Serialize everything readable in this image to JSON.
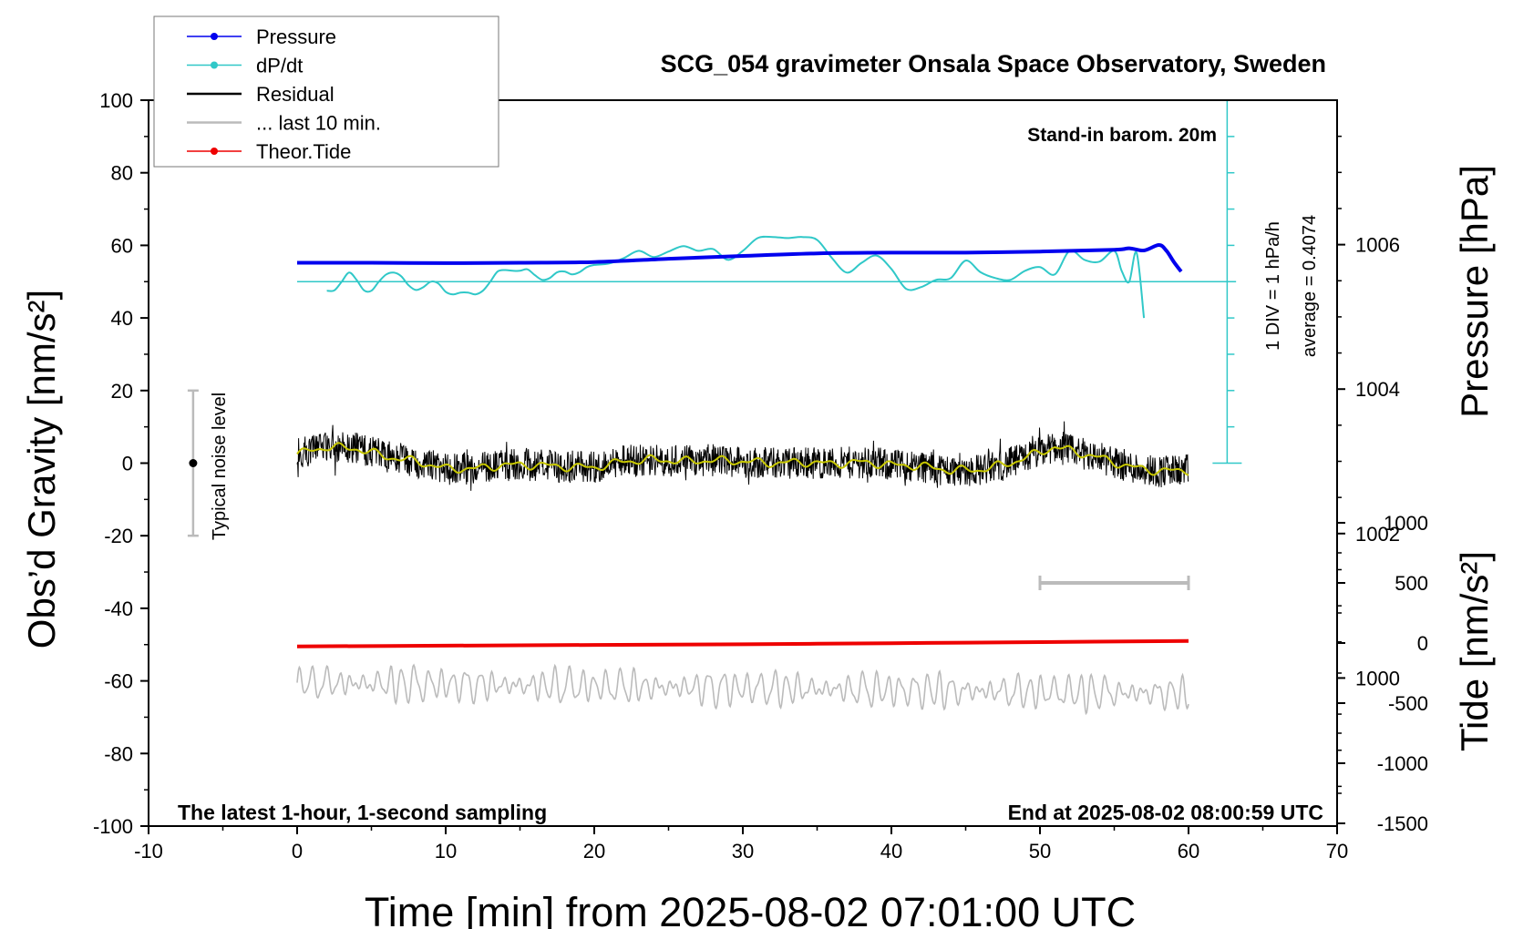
{
  "chart_data": {
    "type": "line",
    "title": "SCG_054 gravimeter Onsala Space Observatory, Sweden",
    "xlabel": "Time [min] from 2025-08-02 07:01:00 UTC",
    "ylabel_left": "Obs’d Gravity [nm/s²]",
    "ylabel_right_pressure": "Pressure [hPa]",
    "ylabel_right_tide": "Tide [nm/s²]",
    "xlim": [
      -10,
      70
    ],
    "ylim": [
      -100,
      100
    ],
    "x_ticks": [
      "-10",
      "0",
      "10",
      "20",
      "30",
      "40",
      "50",
      "60",
      "70"
    ],
    "y_ticks": [
      "100",
      "80",
      "60",
      "40",
      "20",
      "0",
      "-20",
      "-40",
      "-60",
      "-80",
      "-100"
    ],
    "pressure_axis": {
      "ticks": [
        "1006",
        "1004",
        "1002",
        "1000"
      ],
      "range": [
        997.95,
        1008
      ]
    },
    "tide_axis": {
      "ticks": [
        "1000",
        "500",
        "0",
        "-500",
        "-1000",
        "-1500"
      ],
      "range": [
        -1500,
        1500
      ]
    },
    "legend": {
      "placement": "top-left",
      "entries": [
        {
          "label": "Pressure",
          "color": "#0000ee",
          "marker": true
        },
        {
          "label": "dP/dt",
          "color": "#30c8c8",
          "marker": true
        },
        {
          "label": "Residual",
          "color": "#000000",
          "marker": false
        },
        {
          "label": "... last 10 min.",
          "color": "#bbbbbb",
          "marker": false
        },
        {
          "label": "Theor.Tide",
          "color": "#ee0000",
          "marker": true
        }
      ]
    },
    "annotations": {
      "barometer": "Stand-in barom. 20m",
      "div_note": "1 DIV = 1 hPa/h",
      "average_note": "average = 0.4074",
      "noise_label": "Typical noise level",
      "latest_note": "The latest 1-hour, 1-second sampling",
      "end_note": "End at 2025-08-02 08:00:59 UTC"
    },
    "noise_bar": {
      "x": -7,
      "ymin": -20,
      "ymax": 20,
      "center": 0
    },
    "last10_bar": {
      "xmin": 50,
      "xmax": 60,
      "y": -33
    },
    "series": [
      {
        "name": "Pressure",
        "color": "#0000ee",
        "x": [
          0,
          5,
          10,
          15,
          20,
          25,
          30,
          35,
          40,
          45,
          50,
          55,
          56,
          57,
          58,
          58.5,
          59,
          59.5
        ],
        "y": [
          55.2,
          55.2,
          55.1,
          55.2,
          55.4,
          56.3,
          57.1,
          57.8,
          58.0,
          58.0,
          58.3,
          58.8,
          59.2,
          58.6,
          60.1,
          58.6,
          55.5,
          52.8
        ]
      },
      {
        "name": "dP/dt",
        "color": "#30c8c8",
        "x": [
          2,
          2.5,
          3,
          3.5,
          4,
          4.5,
          5,
          5.5,
          6,
          6.5,
          7,
          7.5,
          8,
          8.5,
          9,
          9.5,
          10,
          10.5,
          11,
          11.5,
          12,
          12.5,
          13,
          13.5,
          14,
          14.5,
          15,
          15.5,
          16,
          16.5,
          17,
          17.5,
          18,
          18.5,
          19,
          19.5,
          20,
          21,
          22,
          23,
          24,
          25,
          26,
          27,
          28,
          29,
          30,
          31,
          32,
          33,
          34,
          35,
          36,
          37,
          38,
          39,
          40,
          41,
          42,
          43,
          44,
          45,
          46,
          47,
          48,
          49,
          50,
          51,
          52,
          53,
          54,
          55,
          55.5,
          56,
          56.5,
          57
        ],
        "y": [
          47.5,
          47.6,
          50.0,
          52.5,
          50.5,
          47.6,
          47.5,
          50.0,
          52.0,
          52.5,
          51.5,
          49.0,
          47.7,
          48.5,
          50.0,
          49.5,
          47.2,
          46.5,
          47.0,
          47.0,
          46.5,
          47.5,
          50.0,
          52.8,
          53.2,
          53.0,
          53.0,
          53.4,
          51.8,
          50.5,
          51.0,
          52.6,
          52.8,
          52.0,
          52.6,
          54.0,
          54.6,
          55.0,
          56.5,
          58.5,
          56.8,
          58.3,
          59.8,
          58.5,
          59.0,
          56.0,
          58.5,
          62.0,
          62.3,
          62.0,
          62.3,
          61.5,
          56.5,
          52.5,
          55.2,
          57.2,
          53.5,
          48.0,
          48.5,
          50.5,
          51.0,
          55.8,
          52.6,
          51.0,
          50.5,
          53.0,
          54.0,
          52.0,
          58.5,
          56.0,
          55.5,
          58.5,
          53.0,
          49.9,
          58.0,
          40.0
        ]
      },
      {
        "name": "Residual",
        "color": "#000000",
        "x": [
          0,
          2,
          4,
          6,
          8,
          10,
          12,
          14,
          16,
          18,
          20,
          22,
          24,
          26,
          28,
          30,
          32,
          34,
          36,
          38,
          40,
          42,
          44,
          46,
          48,
          50,
          51,
          52,
          54,
          56,
          58,
          60
        ],
        "y": [
          2.5,
          4.5,
          4.0,
          1.8,
          0.5,
          -1.5,
          -1.5,
          -0.5,
          -0.5,
          -1.0,
          -1.2,
          0.5,
          1.0,
          0.5,
          0.8,
          0.5,
          0.0,
          0.3,
          -0.2,
          0.3,
          -0.5,
          -0.8,
          -2.0,
          -1.8,
          0.0,
          3.0,
          4.5,
          3.5,
          1.5,
          -1.0,
          -2.2,
          -2.0
        ]
      },
      {
        "name": "... last 10 min.",
        "color": "#bbbbbb",
        "x": [
          0,
          60
        ],
        "y": [
          -60.5,
          -63.5
        ]
      },
      {
        "name": "Theor.Tide",
        "color": "#ee0000",
        "x": [
          0,
          10,
          20,
          30,
          40,
          50,
          60
        ],
        "y": [
          -50.5,
          -50.3,
          -50.1,
          -49.9,
          -49.6,
          -49.3,
          -49.0
        ]
      }
    ]
  }
}
